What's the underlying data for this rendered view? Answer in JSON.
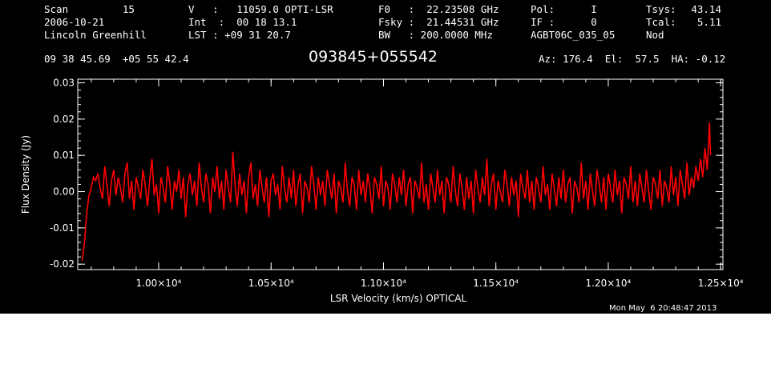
{
  "header": {
    "col1": [
      "Scan         15",
      "2006-10-21",
      "Lincoln Greenhill"
    ],
    "col2": [
      "V   :   11059.0 OPTI-LSR",
      "Int  :  00 18 13.1",
      "LST : +09 31 20.7"
    ],
    "col3": [
      "F0   :  22.23508 GHz",
      "Fsky :  21.44531 GHz",
      "BW   : 200.0000 MHz"
    ],
    "col4": [
      "Pol:      I",
      "IF :      0",
      "AGBT06C_035_05"
    ],
    "col5a": [
      "Tsys:",
      "Tcal:",
      "Nod"
    ],
    "col5b": [
      "43.14",
      "5.11",
      ""
    ],
    "coords": "09 38 45.69  +05 55 42.4",
    "source": "093845+055542",
    "azel": "Az: 176.4  El:  57.5  HA: -0.12"
  },
  "footer": {
    "timestamp": "Mon May  6 20:48:47 2013"
  },
  "colors": {
    "background": "#000000",
    "axes": "#ffffff",
    "trace": "#ff0000"
  },
  "chart_data": {
    "type": "line",
    "xlabel": "LSR Velocity (km/s) OPTICAL",
    "ylabel": "Flux Density (Jy)",
    "xlim": [
      9640,
      12510
    ],
    "ylim": [
      -0.0215,
      0.031
    ],
    "x_ticks": [
      10000,
      10500,
      11000,
      11500,
      12000,
      12500
    ],
    "x_tick_labels": [
      "1.00×10⁴",
      "1.05×10⁴",
      "1.10×10⁴",
      "1.15×10⁴",
      "1.20×10⁴",
      "1.25×10⁴"
    ],
    "y_ticks": [
      -0.02,
      -0.01,
      0.0,
      0.01,
      0.02,
      0.03
    ],
    "y_tick_labels": [
      "-0.02",
      "-0.01",
      "0.00",
      "0.01",
      "0.02",
      "0.03"
    ],
    "grid": false,
    "series": [
      {
        "points": [
          [
            9660,
            -0.019
          ],
          [
            9670,
            -0.014
          ],
          [
            9680,
            -0.006
          ],
          [
            9690,
            -0.001
          ],
          [
            9700,
            0.001
          ],
          [
            9710,
            0.004
          ],
          [
            9720,
            0.003
          ],
          [
            9730,
            0.005
          ],
          [
            9740,
            0.001
          ],
          [
            9750,
            -0.002
          ],
          [
            9760,
            0.007
          ],
          [
            9770,
            0.002
          ],
          [
            9780,
            -0.004
          ],
          [
            9790,
            0.003
          ],
          [
            9800,
            0.006
          ],
          [
            9810,
            -0.001
          ],
          [
            9820,
            0.004
          ],
          [
            9830,
            0.001
          ],
          [
            9840,
            -0.003
          ],
          [
            9850,
            0.005
          ],
          [
            9860,
            0.008
          ],
          [
            9870,
            -0.002
          ],
          [
            9880,
            0.003
          ],
          [
            9890,
            -0.005
          ],
          [
            9900,
            0.004
          ],
          [
            9910,
            0.001
          ],
          [
            9920,
            -0.002
          ],
          [
            9930,
            0.006
          ],
          [
            9940,
            0.002
          ],
          [
            9950,
            -0.004
          ],
          [
            9960,
            0.003
          ],
          [
            9970,
            0.009
          ],
          [
            9980,
            -0.001
          ],
          [
            9990,
            0.002
          ],
          [
            10000,
            -0.006
          ],
          [
            10010,
            0.004
          ],
          [
            10020,
            0.001
          ],
          [
            10030,
            -0.003
          ],
          [
            10040,
            0.007
          ],
          [
            10050,
            0.002
          ],
          [
            10060,
            -0.005
          ],
          [
            10070,
            0.003
          ],
          [
            10080,
            0.0
          ],
          [
            10090,
            0.006
          ],
          [
            10100,
            -0.002
          ],
          [
            10110,
            0.004
          ],
          [
            10120,
            -0.007
          ],
          [
            10130,
            0.002
          ],
          [
            10140,
            0.005
          ],
          [
            10150,
            -0.001
          ],
          [
            10160,
            0.003
          ],
          [
            10170,
            -0.004
          ],
          [
            10180,
            0.008
          ],
          [
            10190,
            0.001
          ],
          [
            10200,
            -0.003
          ],
          [
            10210,
            0.005
          ],
          [
            10220,
            0.002
          ],
          [
            10230,
            -0.006
          ],
          [
            10240,
            0.004
          ],
          [
            10250,
            0.0
          ],
          [
            10260,
            0.007
          ],
          [
            10270,
            -0.002
          ],
          [
            10280,
            0.003
          ],
          [
            10290,
            -0.005
          ],
          [
            10300,
            0.006
          ],
          [
            10310,
            0.001
          ],
          [
            10320,
            -0.003
          ],
          [
            10330,
            0.011
          ],
          [
            10340,
            0.002
          ],
          [
            10350,
            -0.004
          ],
          [
            10360,
            0.005
          ],
          [
            10370,
            -0.001
          ],
          [
            10380,
            0.003
          ],
          [
            10390,
            -0.006
          ],
          [
            10400,
            0.004
          ],
          [
            10410,
            0.008
          ],
          [
            10420,
            -0.002
          ],
          [
            10430,
            0.002
          ],
          [
            10440,
            -0.004
          ],
          [
            10450,
            0.006
          ],
          [
            10460,
            0.001
          ],
          [
            10470,
            -0.003
          ],
          [
            10480,
            0.004
          ],
          [
            10490,
            -0.007
          ],
          [
            10500,
            0.003
          ],
          [
            10510,
            0.005
          ],
          [
            10520,
            -0.001
          ],
          [
            10530,
            0.002
          ],
          [
            10540,
            -0.005
          ],
          [
            10550,
            0.007
          ],
          [
            10560,
            0.001
          ],
          [
            10570,
            -0.003
          ],
          [
            10580,
            0.004
          ],
          [
            10590,
            -0.002
          ],
          [
            10600,
            0.006
          ],
          [
            10610,
            -0.004
          ],
          [
            10620,
            0.002
          ],
          [
            10630,
            0.005
          ],
          [
            10640,
            -0.006
          ],
          [
            10650,
            0.003
          ],
          [
            10660,
            0.001
          ],
          [
            10670,
            -0.003
          ],
          [
            10680,
            0.007
          ],
          [
            10690,
            0.002
          ],
          [
            10700,
            -0.005
          ],
          [
            10710,
            0.004
          ],
          [
            10720,
            -0.001
          ],
          [
            10730,
            0.003
          ],
          [
            10740,
            -0.004
          ],
          [
            10750,
            0.006
          ],
          [
            10760,
            0.002
          ],
          [
            10770,
            -0.002
          ],
          [
            10780,
            0.005
          ],
          [
            10790,
            -0.006
          ],
          [
            10800,
            0.003
          ],
          [
            10810,
            0.001
          ],
          [
            10820,
            -0.003
          ],
          [
            10830,
            0.008
          ],
          [
            10840,
            0.0
          ],
          [
            10850,
            -0.004
          ],
          [
            10860,
            0.004
          ],
          [
            10870,
            0.002
          ],
          [
            10880,
            -0.005
          ],
          [
            10890,
            0.006
          ],
          [
            10900,
            -0.001
          ],
          [
            10910,
            0.003
          ],
          [
            10920,
            -0.003
          ],
          [
            10930,
            0.005
          ],
          [
            10940,
            0.001
          ],
          [
            10950,
            -0.006
          ],
          [
            10960,
            0.004
          ],
          [
            10970,
            0.002
          ],
          [
            10980,
            -0.002
          ],
          [
            10990,
            0.007
          ],
          [
            11000,
            -0.004
          ],
          [
            11010,
            0.003
          ],
          [
            11020,
            0.001
          ],
          [
            11030,
            -0.005
          ],
          [
            11040,
            0.005
          ],
          [
            11050,
            0.002
          ],
          [
            11060,
            -0.003
          ],
          [
            11070,
            0.004
          ],
          [
            11080,
            -0.001
          ],
          [
            11090,
            0.006
          ],
          [
            11100,
            -0.004
          ],
          [
            11110,
            0.002
          ],
          [
            11120,
            0.004
          ],
          [
            11130,
            -0.006
          ],
          [
            11140,
            0.003
          ],
          [
            11150,
            0.001
          ],
          [
            11160,
            -0.002
          ],
          [
            11170,
            0.008
          ],
          [
            11180,
            -0.003
          ],
          [
            11190,
            0.002
          ],
          [
            11200,
            -0.005
          ],
          [
            11210,
            0.005
          ],
          [
            11220,
            0.001
          ],
          [
            11230,
            -0.003
          ],
          [
            11240,
            0.006
          ],
          [
            11250,
            -0.001
          ],
          [
            11260,
            0.003
          ],
          [
            11270,
            -0.006
          ],
          [
            11280,
            0.004
          ],
          [
            11290,
            0.002
          ],
          [
            11300,
            -0.003
          ],
          [
            11310,
            0.007
          ],
          [
            11320,
            0.0
          ],
          [
            11330,
            -0.004
          ],
          [
            11340,
            0.005
          ],
          [
            11350,
            0.001
          ],
          [
            11360,
            -0.005
          ],
          [
            11370,
            0.004
          ],
          [
            11380,
            -0.002
          ],
          [
            11390,
            0.003
          ],
          [
            11400,
            -0.006
          ],
          [
            11410,
            0.006
          ],
          [
            11420,
            0.001
          ],
          [
            11430,
            -0.003
          ],
          [
            11440,
            0.004
          ],
          [
            11450,
            -0.001
          ],
          [
            11460,
            0.009
          ],
          [
            11470,
            -0.004
          ],
          [
            11480,
            0.002
          ],
          [
            11490,
            0.005
          ],
          [
            11500,
            -0.005
          ],
          [
            11510,
            0.003
          ],
          [
            11520,
            0.0
          ],
          [
            11530,
            -0.003
          ],
          [
            11540,
            0.006
          ],
          [
            11550,
            0.002
          ],
          [
            11560,
            -0.004
          ],
          [
            11570,
            0.004
          ],
          [
            11580,
            -0.001
          ],
          [
            11590,
            0.003
          ],
          [
            11600,
            -0.007
          ],
          [
            11610,
            0.005
          ],
          [
            11620,
            0.001
          ],
          [
            11630,
            -0.002
          ],
          [
            11640,
            0.006
          ],
          [
            11650,
            -0.003
          ],
          [
            11660,
            0.003
          ],
          [
            11670,
            -0.005
          ],
          [
            11680,
            0.004
          ],
          [
            11690,
            0.001
          ],
          [
            11700,
            -0.003
          ],
          [
            11710,
            0.007
          ],
          [
            11720,
            -0.001
          ],
          [
            11730,
            0.002
          ],
          [
            11740,
            -0.005
          ],
          [
            11750,
            0.005
          ],
          [
            11760,
            0.001
          ],
          [
            11770,
            -0.004
          ],
          [
            11780,
            0.004
          ],
          [
            11790,
            -0.002
          ],
          [
            11800,
            0.006
          ],
          [
            11810,
            -0.003
          ],
          [
            11820,
            0.002
          ],
          [
            11830,
            0.004
          ],
          [
            11840,
            -0.006
          ],
          [
            11850,
            0.003
          ],
          [
            11860,
            0.001
          ],
          [
            11870,
            -0.003
          ],
          [
            11880,
            0.008
          ],
          [
            11890,
            -0.002
          ],
          [
            11900,
            0.003
          ],
          [
            11910,
            -0.005
          ],
          [
            11920,
            0.005
          ],
          [
            11930,
            0.0
          ],
          [
            11940,
            -0.004
          ],
          [
            11950,
            0.006
          ],
          [
            11960,
            0.002
          ],
          [
            11970,
            -0.003
          ],
          [
            11980,
            0.004
          ],
          [
            11990,
            -0.005
          ],
          [
            12000,
            0.005
          ],
          [
            12010,
            0.001
          ],
          [
            12020,
            -0.003
          ],
          [
            12030,
            0.006
          ],
          [
            12040,
            -0.001
          ],
          [
            12050,
            0.003
          ],
          [
            12060,
            -0.006
          ],
          [
            12070,
            0.004
          ],
          [
            12080,
            0.002
          ],
          [
            12090,
            -0.002
          ],
          [
            12100,
            0.007
          ],
          [
            12110,
            -0.003
          ],
          [
            12120,
            0.003
          ],
          [
            12130,
            -0.004
          ],
          [
            12140,
            0.005
          ],
          [
            12150,
            0.001
          ],
          [
            12160,
            -0.003
          ],
          [
            12170,
            0.006
          ],
          [
            12180,
            0.0
          ],
          [
            12190,
            -0.005
          ],
          [
            12200,
            0.004
          ],
          [
            12210,
            0.002
          ],
          [
            12220,
            -0.002
          ],
          [
            12230,
            0.006
          ],
          [
            12240,
            -0.004
          ],
          [
            12250,
            0.003
          ],
          [
            12260,
            0.001
          ],
          [
            12270,
            -0.003
          ],
          [
            12280,
            0.007
          ],
          [
            12290,
            -0.001
          ],
          [
            12300,
            0.004
          ],
          [
            12310,
            -0.004
          ],
          [
            12320,
            0.006
          ],
          [
            12330,
            0.002
          ],
          [
            12340,
            -0.002
          ],
          [
            12350,
            0.008
          ],
          [
            12360,
            -0.001
          ],
          [
            12370,
            0.004
          ],
          [
            12380,
            0.001
          ],
          [
            12390,
            0.007
          ],
          [
            12400,
            0.003
          ],
          [
            12410,
            0.009
          ],
          [
            12420,
            0.004
          ],
          [
            12430,
            0.012
          ],
          [
            12440,
            0.006
          ],
          [
            12450,
            0.019
          ],
          [
            12455,
            0.01
          ]
        ]
      }
    ]
  }
}
